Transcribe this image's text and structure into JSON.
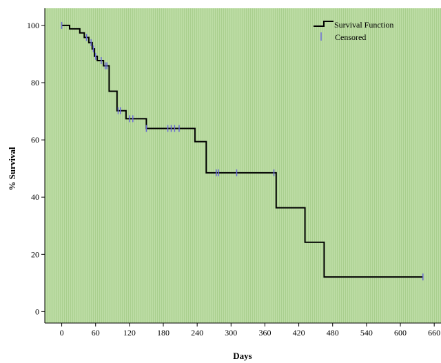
{
  "chart_data": {
    "type": "line",
    "title": "",
    "xlabel": "Days",
    "ylabel": "% Survival",
    "xlim": [
      -30,
      672
    ],
    "ylim": [
      -4,
      106
    ],
    "xticks": [
      0,
      60,
      120,
      180,
      240,
      300,
      360,
      420,
      480,
      540,
      600,
      660
    ],
    "yticks": [
      0,
      20,
      40,
      60,
      80,
      100
    ],
    "grid": false,
    "legend_position": "top-right",
    "colors": {
      "plot_background": "#b5d89a",
      "line": "#000000",
      "censor": "#6a6ad8"
    },
    "series": [
      {
        "name": "Survival Function",
        "kind": "step",
        "points": [
          [
            0,
            100
          ],
          [
            14,
            100
          ],
          [
            14,
            98.8
          ],
          [
            32,
            98.8
          ],
          [
            32,
            97.4
          ],
          [
            40,
            97.4
          ],
          [
            40,
            95.8
          ],
          [
            48,
            95.8
          ],
          [
            48,
            94.0
          ],
          [
            54,
            94.0
          ],
          [
            54,
            91.8
          ],
          [
            58,
            91.8
          ],
          [
            58,
            89.2
          ],
          [
            63,
            89.2
          ],
          [
            63,
            87.7
          ],
          [
            74,
            87.7
          ],
          [
            74,
            85.9
          ],
          [
            84,
            85.9
          ],
          [
            84,
            77.0
          ],
          [
            98,
            77.0
          ],
          [
            98,
            70.2
          ],
          [
            114,
            70.2
          ],
          [
            114,
            67.4
          ],
          [
            150,
            67.4
          ],
          [
            150,
            64.0
          ],
          [
            236,
            64.0
          ],
          [
            236,
            59.4
          ],
          [
            256,
            59.4
          ],
          [
            256,
            48.5
          ],
          [
            380,
            48.5
          ],
          [
            380,
            36.3
          ],
          [
            431,
            36.3
          ],
          [
            431,
            24.2
          ],
          [
            465,
            24.2
          ],
          [
            465,
            12.1
          ],
          [
            640,
            12.1
          ]
        ]
      },
      {
        "name": "Censored",
        "kind": "marks",
        "points": [
          [
            0,
            100
          ],
          [
            44,
            95.8
          ],
          [
            52,
            94.0
          ],
          [
            56,
            91.8
          ],
          [
            60,
            89.2
          ],
          [
            70,
            87.7
          ],
          [
            77,
            85.9
          ],
          [
            80,
            85.9
          ],
          [
            100,
            70.2
          ],
          [
            104,
            70.2
          ],
          [
            120,
            67.4
          ],
          [
            126,
            67.4
          ],
          [
            150,
            64.0
          ],
          [
            188,
            64.0
          ],
          [
            194,
            64.0
          ],
          [
            200,
            64.0
          ],
          [
            208,
            64.0
          ],
          [
            274,
            48.5
          ],
          [
            278,
            48.5
          ],
          [
            310,
            48.5
          ],
          [
            376,
            48.5
          ],
          [
            640,
            12.1
          ]
        ]
      }
    ]
  }
}
